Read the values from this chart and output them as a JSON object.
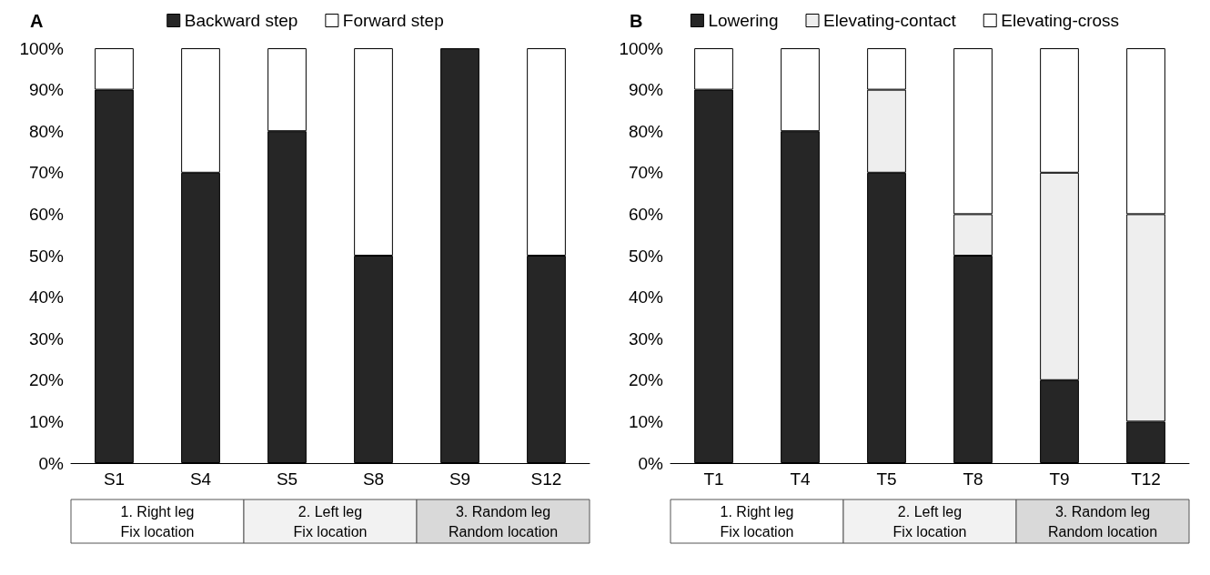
{
  "chart_data": [
    {
      "type": "bar",
      "title": "A",
      "stacked": true,
      "categories": [
        "S1",
        "S4",
        "S5",
        "S8",
        "S9",
        "S12"
      ],
      "series": [
        {
          "name": "Backward step",
          "color": "#262626",
          "values": [
            90,
            70,
            80,
            50,
            100,
            50
          ]
        },
        {
          "name": "Forward step",
          "color": "#ffffff",
          "values": [
            10,
            30,
            20,
            50,
            0,
            50
          ]
        }
      ],
      "ylim": [
        0,
        100
      ],
      "yticks": [
        {
          "value": 0,
          "label": "0%"
        },
        {
          "value": 10,
          "label": "10%"
        },
        {
          "value": 20,
          "label": "20%"
        },
        {
          "value": 30,
          "label": "30%"
        },
        {
          "value": 40,
          "label": "40%"
        },
        {
          "value": 50,
          "label": "50%"
        },
        {
          "value": 60,
          "label": "60%"
        },
        {
          "value": 70,
          "label": "70%"
        },
        {
          "value": 80,
          "label": "80%"
        },
        {
          "value": 90,
          "label": "90%"
        },
        {
          "value": 100,
          "label": "100%"
        }
      ],
      "grid": false,
      "legend": "top",
      "annotations": [
        "1. Right leg\nFix location",
        "2. Left leg\nFix location",
        "3. Random leg\nRandom location"
      ]
    },
    {
      "type": "bar",
      "title": "B",
      "stacked": true,
      "categories": [
        "T1",
        "T4",
        "T5",
        "T8",
        "T9",
        "T12"
      ],
      "series": [
        {
          "name": "Lowering",
          "color": "#262626",
          "values": [
            90,
            80,
            70,
            50,
            20,
            10
          ]
        },
        {
          "name": "Elevating-contact",
          "color": "#eeeeee",
          "values": [
            0,
            0,
            20,
            10,
            50,
            50
          ]
        },
        {
          "name": "Elevating-cross",
          "color": "#ffffff",
          "values": [
            10,
            20,
            10,
            40,
            30,
            40
          ]
        }
      ],
      "ylim": [
        0,
        100
      ],
      "yticks": [
        {
          "value": 0,
          "label": "0%"
        },
        {
          "value": 10,
          "label": "10%"
        },
        {
          "value": 20,
          "label": "20%"
        },
        {
          "value": 30,
          "label": "30%"
        },
        {
          "value": 40,
          "label": "40%"
        },
        {
          "value": 50,
          "label": "50%"
        },
        {
          "value": 60,
          "label": "60%"
        },
        {
          "value": 70,
          "label": "70%"
        },
        {
          "value": 80,
          "label": "80%"
        },
        {
          "value": 90,
          "label": "90%"
        },
        {
          "value": 100,
          "label": "100%"
        }
      ],
      "grid": false,
      "legend": "top",
      "annotations": [
        "1. Right leg\nFix location",
        "2. Left leg\nFix location",
        "3. Random leg\nRandom location"
      ]
    }
  ]
}
